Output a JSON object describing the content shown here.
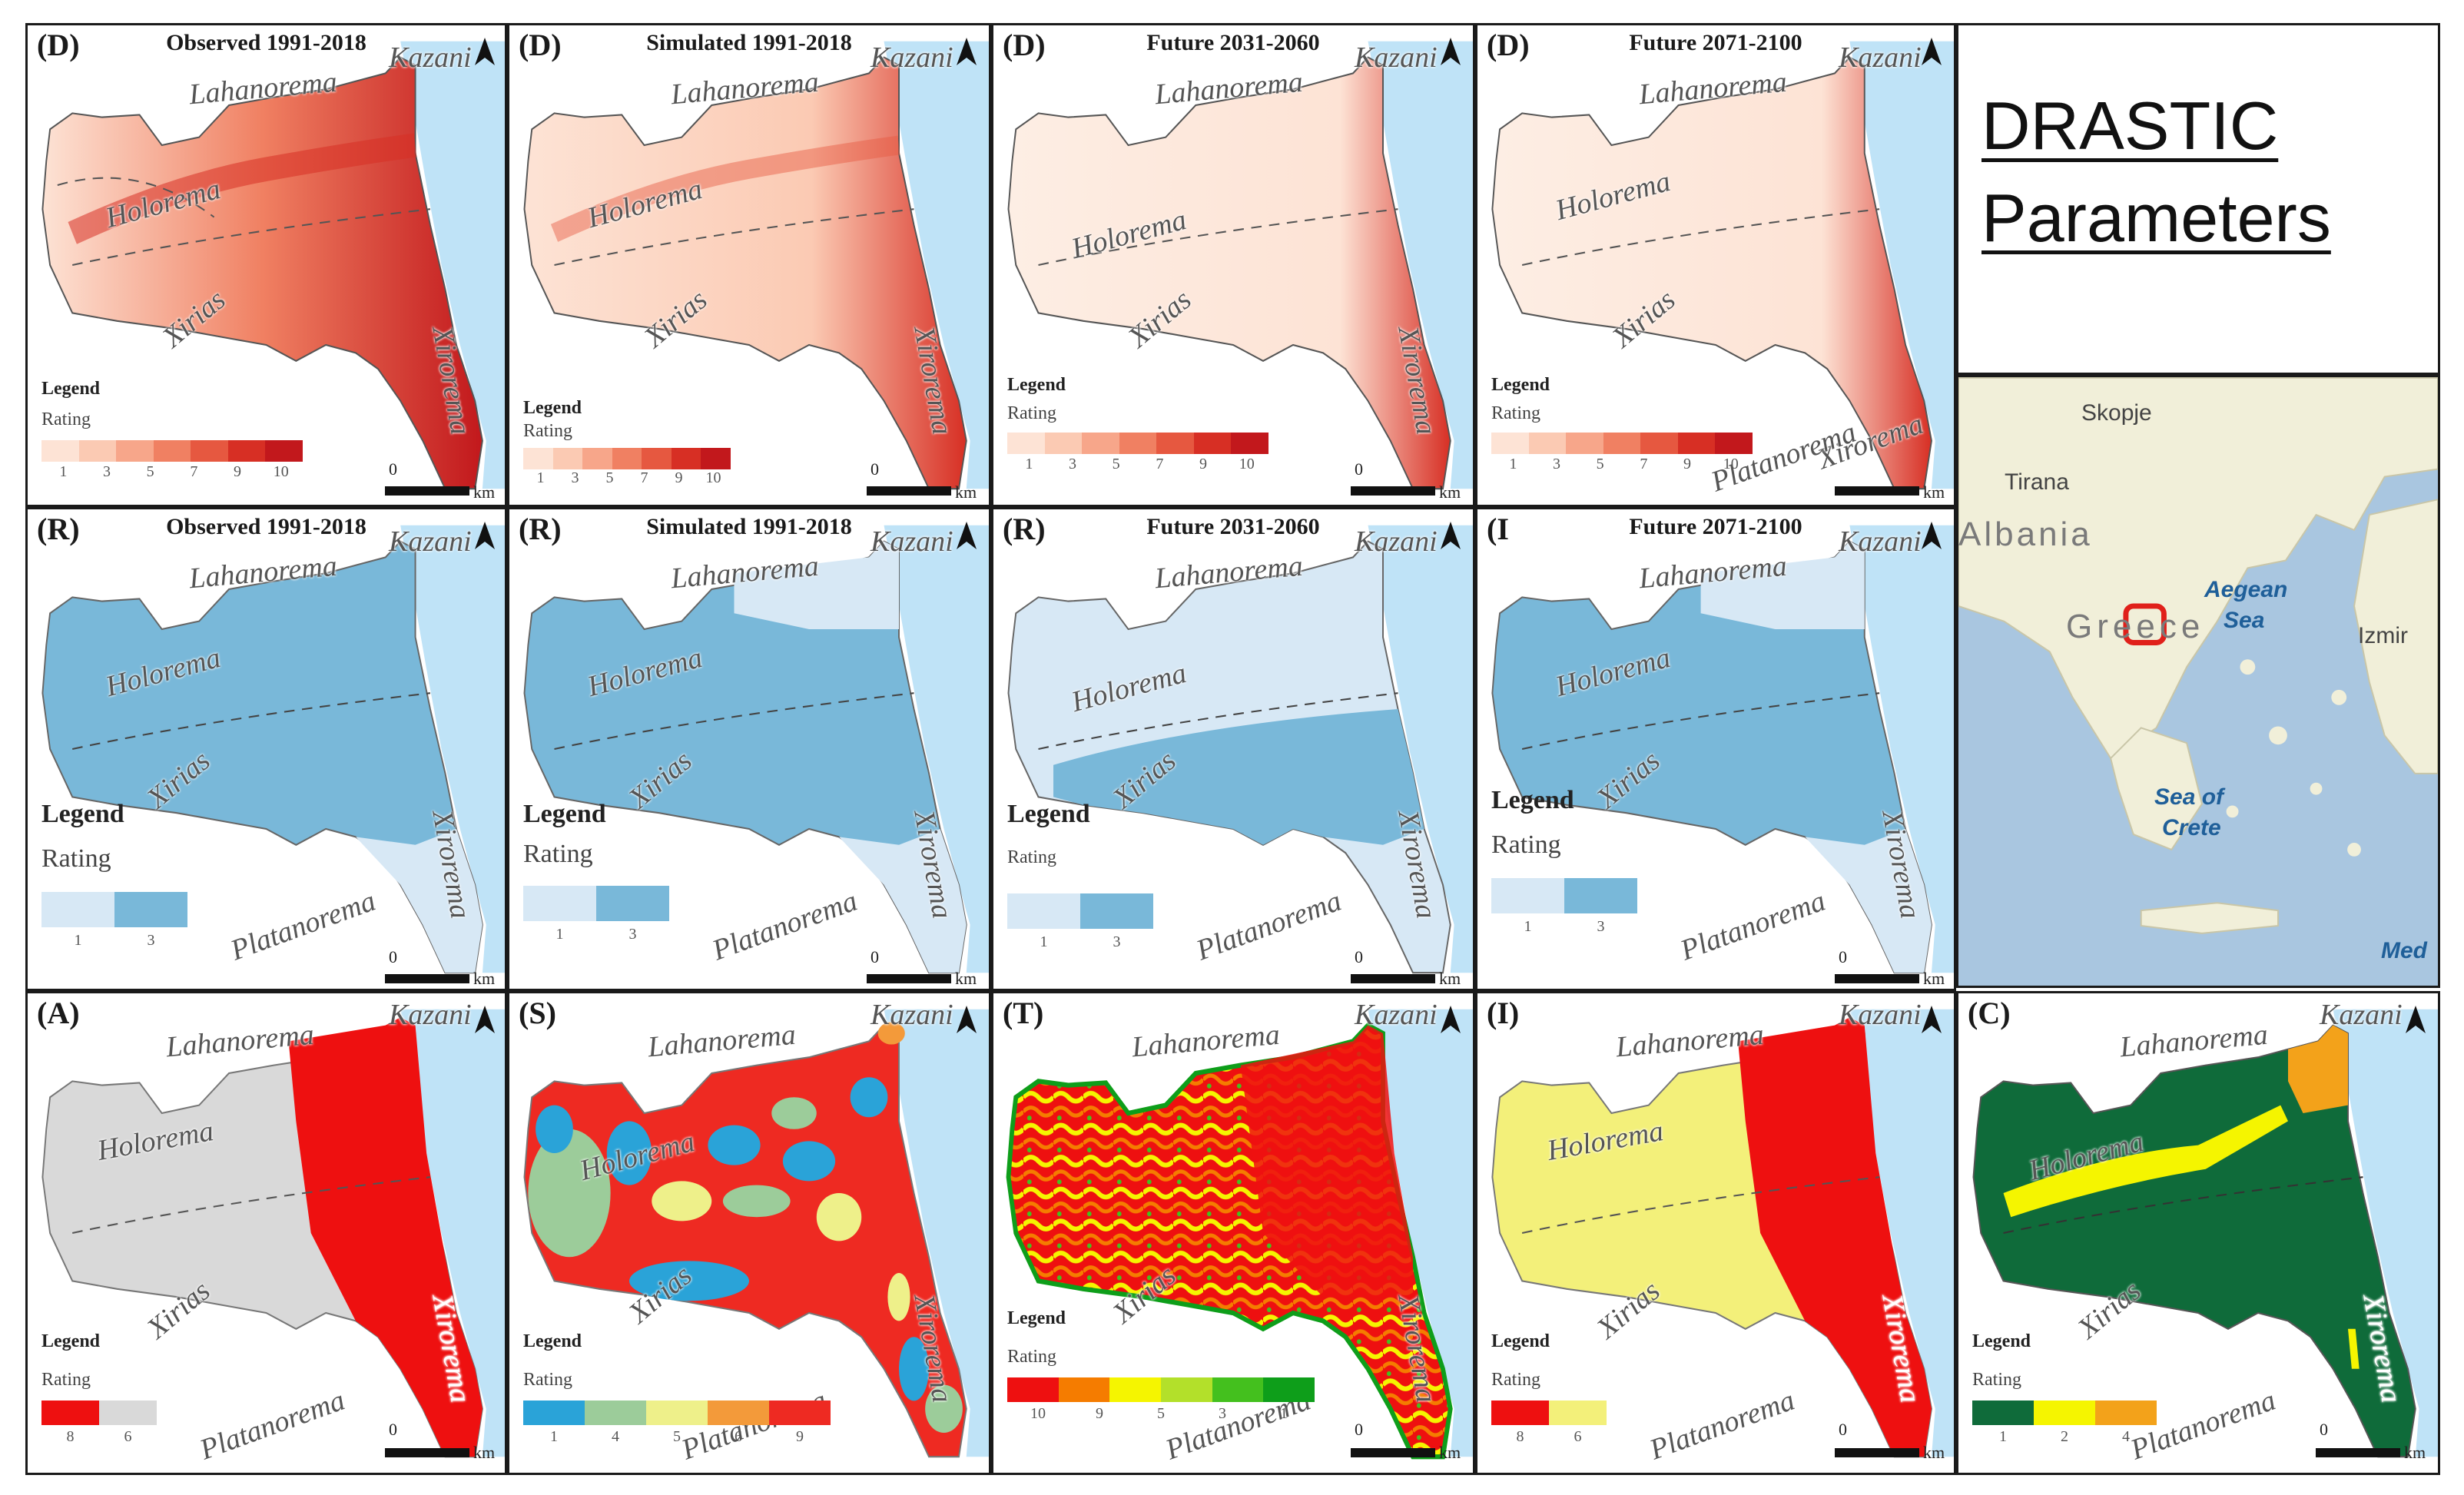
{
  "title": {
    "line1": "DRASTIC",
    "line2": "Parameters"
  },
  "places": {
    "kazani": "Kazani",
    "lahanorema": "Lahanorema",
    "holorema": "Holorema",
    "xirias": "Xirias",
    "xirorema": "Xirorema",
    "platanorema": "Platanorema"
  },
  "legend": {
    "heading": "Legend",
    "rating": "Rating",
    "scale_zero": "0",
    "scale_unit": "km"
  },
  "row_d": {
    "letter": "(D)",
    "panels": [
      {
        "title": "Observed 1991-2018"
      },
      {
        "title": "Simulated 1991-2018"
      },
      {
        "title": "Future 2031-2060"
      },
      {
        "title": "Future 2071-2100"
      }
    ],
    "colors": [
      "#fde3d5",
      "#fbcab3",
      "#f7a68a",
      "#f08062",
      "#e65840",
      "#d72f24",
      "#c2181c"
    ],
    "ticks": [
      "1",
      "3",
      "5",
      "7",
      "9",
      "10"
    ]
  },
  "row_r": {
    "letter": "(R)",
    "last_letter": "(I",
    "panels": [
      {
        "title": "Observed 1991-2018"
      },
      {
        "title": "Simulated 1991-2018"
      },
      {
        "title": "Future 2031-2060"
      },
      {
        "title": "Future 2071-2100"
      }
    ],
    "colors": [
      "#d7e8f5",
      "#79b8d9"
    ],
    "ticks": [
      "1",
      "3"
    ]
  },
  "row_bottom": [
    {
      "letter": "(A)",
      "colors": [
        "#ee1010",
        "#d9d9d9"
      ],
      "ticks": [
        "8",
        "6"
      ]
    },
    {
      "letter": "(S)",
      "colors": [
        "#2aa3d8",
        "#9ccc9a",
        "#eef08a",
        "#f39a3a",
        "#ee2a22"
      ],
      "ticks": [
        "1",
        "4",
        "5",
        "6",
        "9"
      ]
    },
    {
      "letter": "(T)",
      "colors": [
        "#ee1010",
        "#f57c00",
        "#f5f500",
        "#b3e02a",
        "#44c01e",
        "#0e9e1a"
      ],
      "ticks": [
        "10",
        "9",
        "5",
        "3",
        "1"
      ]
    },
    {
      "letter": "(I)",
      "colors": [
        "#ee1010",
        "#f3f07a"
      ],
      "ticks": [
        "8",
        "6"
      ]
    },
    {
      "letter": "(C)",
      "colors": [
        "#0f6b3a",
        "#f5f500",
        "#f3a21a"
      ],
      "ticks": [
        "1",
        "2",
        "4"
      ]
    }
  ],
  "inset": {
    "skopje": "Skopje",
    "tirana": "Tirana",
    "albania": "Albania",
    "greece": "Greece",
    "aegean": "Aegean",
    "sea": "Sea",
    "izmir": "Izmir",
    "sea_of": "Sea of",
    "crete": "Crete",
    "med": "Med"
  },
  "colors": {
    "sea": "#bfe3f7",
    "inset_sea": "#a9c6e0",
    "inset_land": "#f1efd9",
    "marker": "#e0201a"
  }
}
